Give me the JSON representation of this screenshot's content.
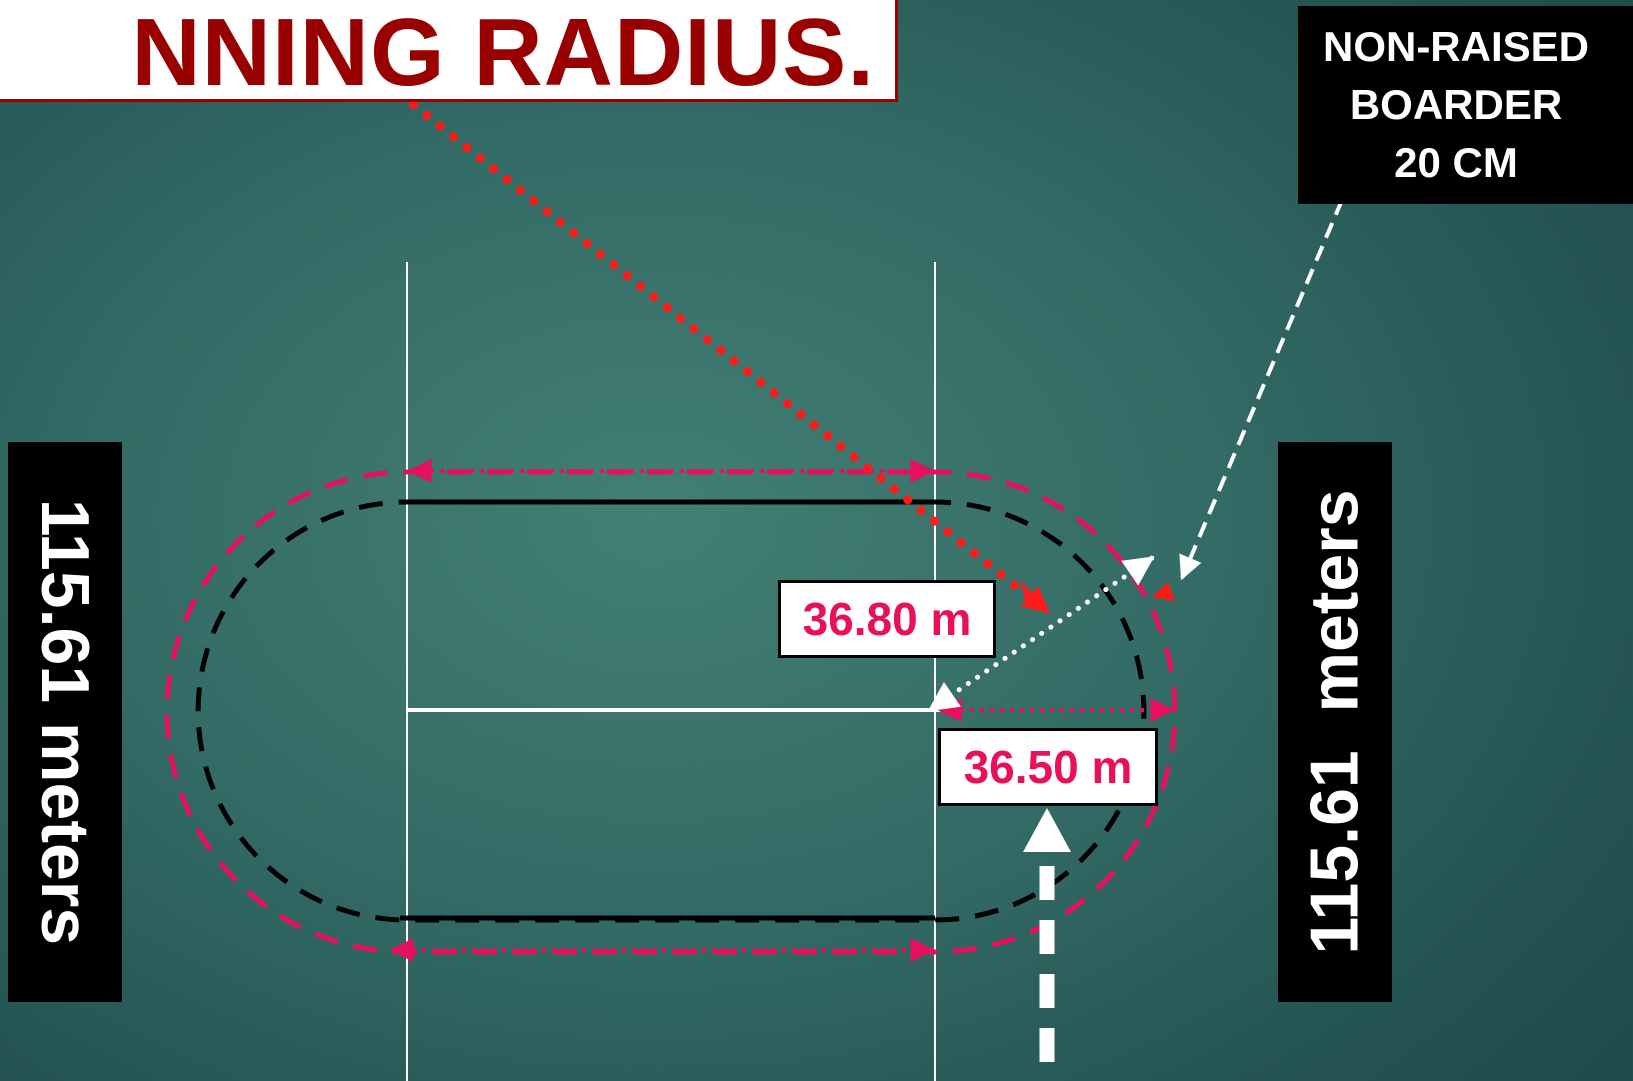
{
  "title": {
    "text": "NNING RADIUS."
  },
  "border_label": {
    "line1": "NON-RAISED",
    "line2": "BOARDER",
    "line3": "20 CM"
  },
  "left_dimension": {
    "text": "115.61 meters"
  },
  "right_dimension": {
    "text": "115.61  meters"
  },
  "measurements": {
    "m1": "36.80 m",
    "m2": "36.50 m"
  },
  "colors": {
    "background": "#336b66",
    "title_red": "#990000",
    "dashed_pink": "#e8105c",
    "dotted_red": "#ff1a1a",
    "black": "#000000",
    "white": "#ffffff"
  },
  "icons": [
    "red-dotted-arrow-icon",
    "white-dotted-arrow-icon",
    "white-dashed-arrow-icon",
    "pink-dimension-arrow-icon",
    "white-entry-arrow-icon"
  ]
}
